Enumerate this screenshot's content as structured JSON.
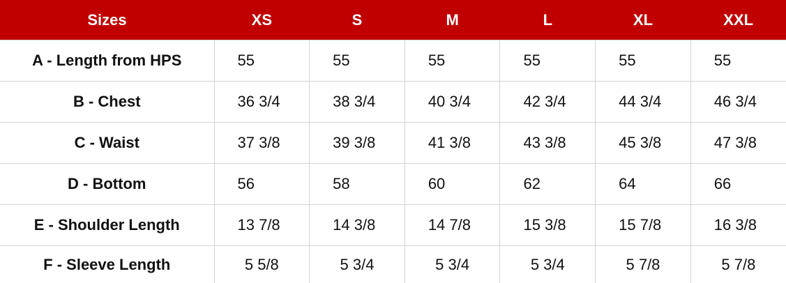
{
  "header": {
    "label": "Sizes",
    "sizes": [
      "XS",
      "S",
      "M",
      "L",
      "XL",
      "XXL"
    ]
  },
  "header_color": "#C00000",
  "rows": [
    {
      "label": "A - Length from HPS",
      "values": [
        "55",
        "55",
        "55",
        "55",
        "55",
        "55"
      ]
    },
    {
      "label": "B - Chest",
      "values": [
        "36 3/4",
        "38 3/4",
        "40 3/4",
        "42 3/4",
        "44 3/4",
        "46 3/4"
      ]
    },
    {
      "label": "C - Waist",
      "values": [
        "37 3/8",
        "39 3/8",
        "41 3/8",
        "43 3/8",
        "45 3/8",
        "47 3/8"
      ]
    },
    {
      "label": "D - Bottom",
      "values": [
        "56",
        "58",
        "60",
        "62",
        "64",
        "66"
      ]
    },
    {
      "label": "E - Shoulder Length",
      "values": [
        "13 7/8",
        "14 3/8",
        "14 7/8",
        "15 3/8",
        "15 7/8",
        "16 3/8"
      ]
    },
    {
      "label": "F - Sleeve Length",
      "values": [
        "5 5/8",
        "5 3/4",
        "5 3/4",
        "5 3/4",
        "5 7/8",
        "5 7/8"
      ]
    }
  ]
}
